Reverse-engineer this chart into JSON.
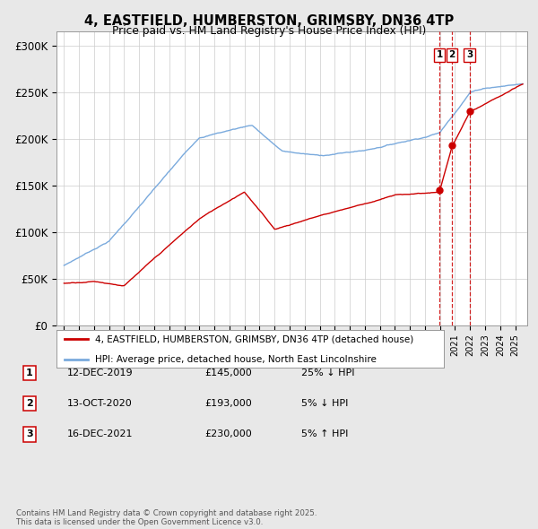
{
  "title": "4, EASTFIELD, HUMBERSTON, GRIMSBY, DN36 4TP",
  "subtitle": "Price paid vs. HM Land Registry's House Price Index (HPI)",
  "ylabel_ticks": [
    "£0",
    "£50K",
    "£100K",
    "£150K",
    "£200K",
    "£250K",
    "£300K"
  ],
  "ytick_vals": [
    0,
    50000,
    100000,
    150000,
    200000,
    250000,
    300000
  ],
  "ylim": [
    0,
    315000
  ],
  "xlim_start": 1994.5,
  "xlim_end": 2025.8,
  "background_color": "#e8e8e8",
  "plot_bg_color": "#ffffff",
  "hpi_color": "#7aaadd",
  "price_color": "#cc0000",
  "vline_color": "#cc0000",
  "transactions": [
    {
      "num": 1,
      "date_label": "12-DEC-2019",
      "year": 2019.96,
      "price": 145000,
      "pct": "25% ↓ HPI"
    },
    {
      "num": 2,
      "date_label": "13-OCT-2020",
      "year": 2020.79,
      "price": 193000,
      "pct": "5% ↓ HPI"
    },
    {
      "num": 3,
      "date_label": "16-DEC-2021",
      "year": 2021.96,
      "price": 230000,
      "pct": "5% ↑ HPI"
    }
  ],
  "legend_line1": "4, EASTFIELD, HUMBERSTON, GRIMSBY, DN36 4TP (detached house)",
  "legend_line2": "HPI: Average price, detached house, North East Lincolnshire",
  "footer": "Contains HM Land Registry data © Crown copyright and database right 2025.\nThis data is licensed under the Open Government Licence v3.0.",
  "table_rows": [
    [
      "1",
      "12-DEC-2019",
      "£145,000",
      "25% ↓ HPI"
    ],
    [
      "2",
      "13-OCT-2020",
      "£193,000",
      "5% ↓ HPI"
    ],
    [
      "3",
      "16-DEC-2021",
      "£230,000",
      "5% ↑ HPI"
    ]
  ]
}
